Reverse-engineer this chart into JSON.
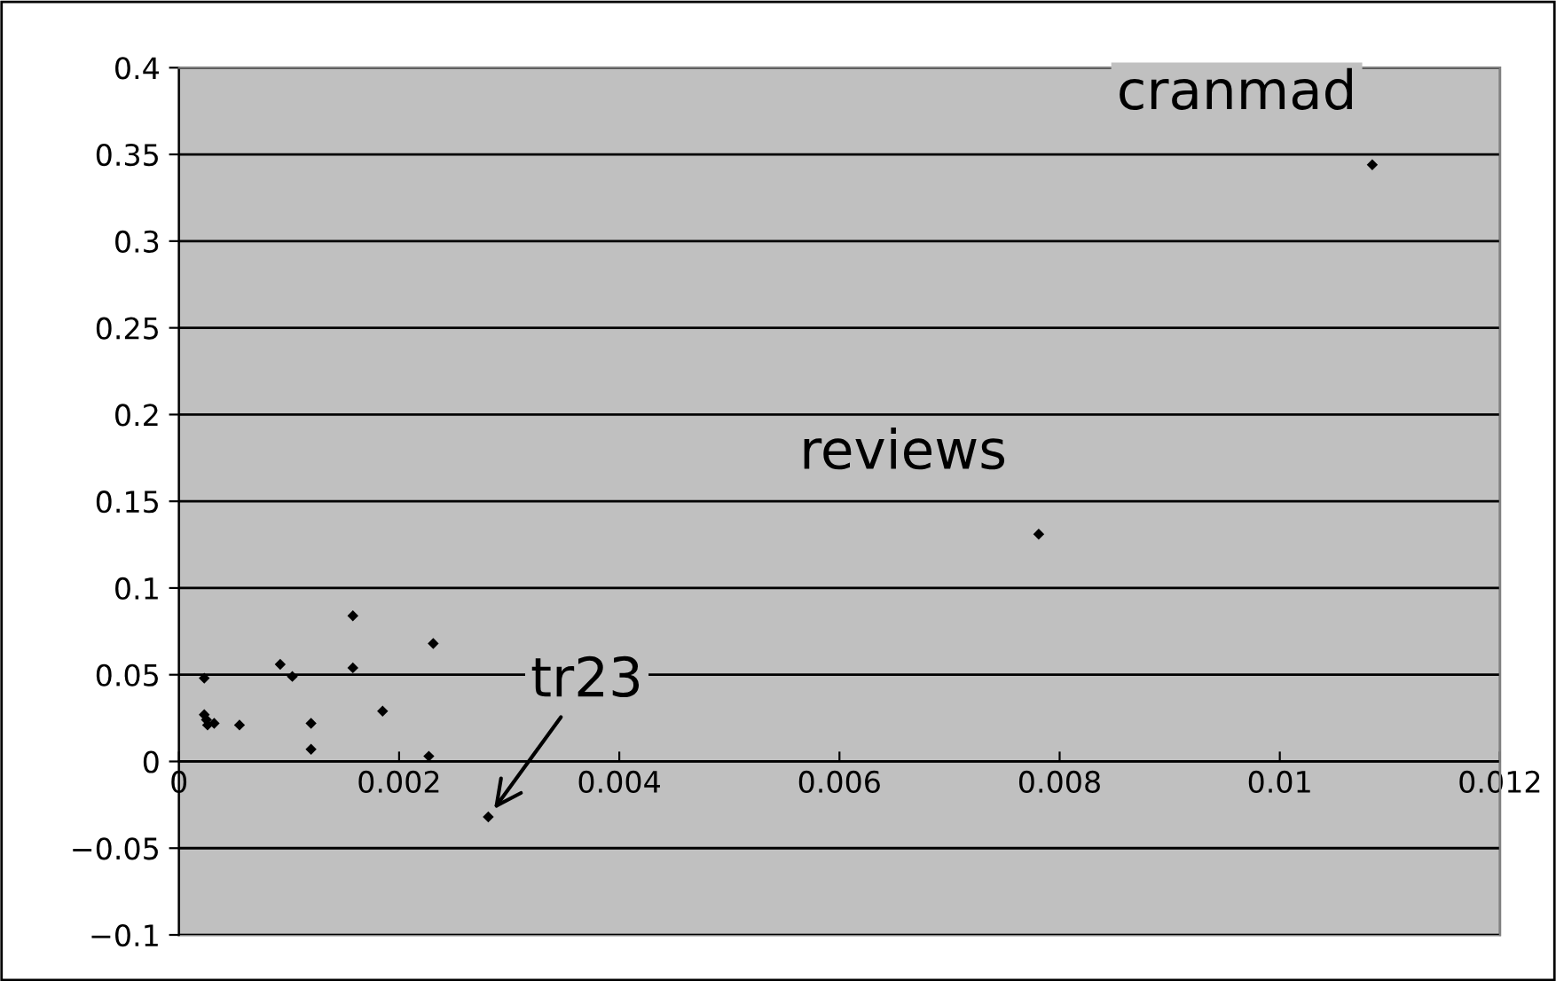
{
  "chart_data": {
    "type": "scatter",
    "color": "#000000",
    "marker": "diamond",
    "grid": "y",
    "x": [
      0.00158,
      0.00231,
      0.00092,
      0.00103,
      0.00158,
      0.00023,
      0.00185,
      0.00023,
      0.00026,
      0.00032,
      0.00025,
      0.00055,
      0.0012,
      0.0012,
      0.00227,
      0.00281,
      0.00781,
      0.01084
    ],
    "values": [
      0.084,
      0.068,
      0.056,
      0.049,
      0.054,
      0.048,
      0.029,
      0.027,
      0.021,
      0.022,
      0.024,
      0.021,
      0.022,
      0.007,
      0.003,
      -0.032,
      0.131,
      0.344
    ],
    "xlim": [
      0,
      0.012
    ],
    "xticks": [
      0,
      0.002,
      0.004,
      0.006,
      0.008,
      0.01,
      0.012
    ],
    "ylim": [
      -0.1,
      0.4
    ],
    "yticks": [
      {
        "value": -0.1,
        "label": "−0.1"
      },
      {
        "value": -0.05,
        "label": "−0.05"
      },
      0,
      0.05,
      0.1,
      0.15,
      0.2,
      0.25,
      0.3,
      0.35,
      0.4
    ],
    "annotations": [
      {
        "text": "cranmad",
        "x": 0.01084,
        "y": 0.344
      },
      {
        "text": "reviews",
        "x": 0.00781,
        "y": 0.131
      },
      {
        "text": "tr23",
        "x": 0.00281,
        "y": -0.032
      }
    ]
  }
}
